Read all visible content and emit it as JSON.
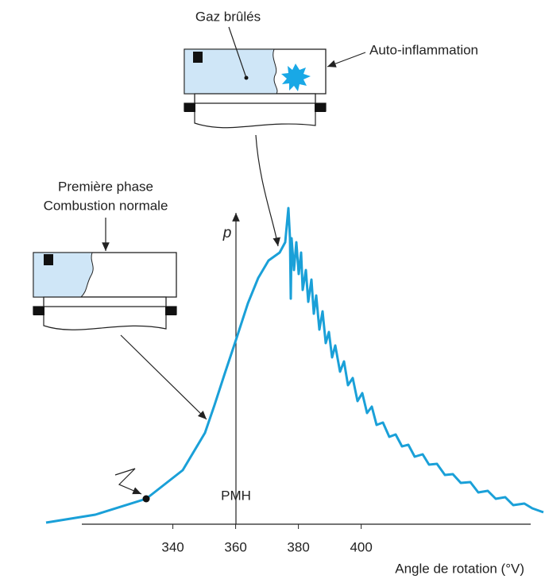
{
  "labels": {
    "burnt_gas": "Gaz brûlés",
    "autoignition": "Auto-inflammation",
    "phase_line1": "Première phase",
    "phase_line2": "Combustion normale",
    "y_axis": "p",
    "tdc": "PMH",
    "x_axis": "Angle de rotation (°V)"
  },
  "axis": {
    "xlim": [
      311,
      454
    ],
    "xticks": [
      340,
      360,
      380,
      400
    ]
  }
}
